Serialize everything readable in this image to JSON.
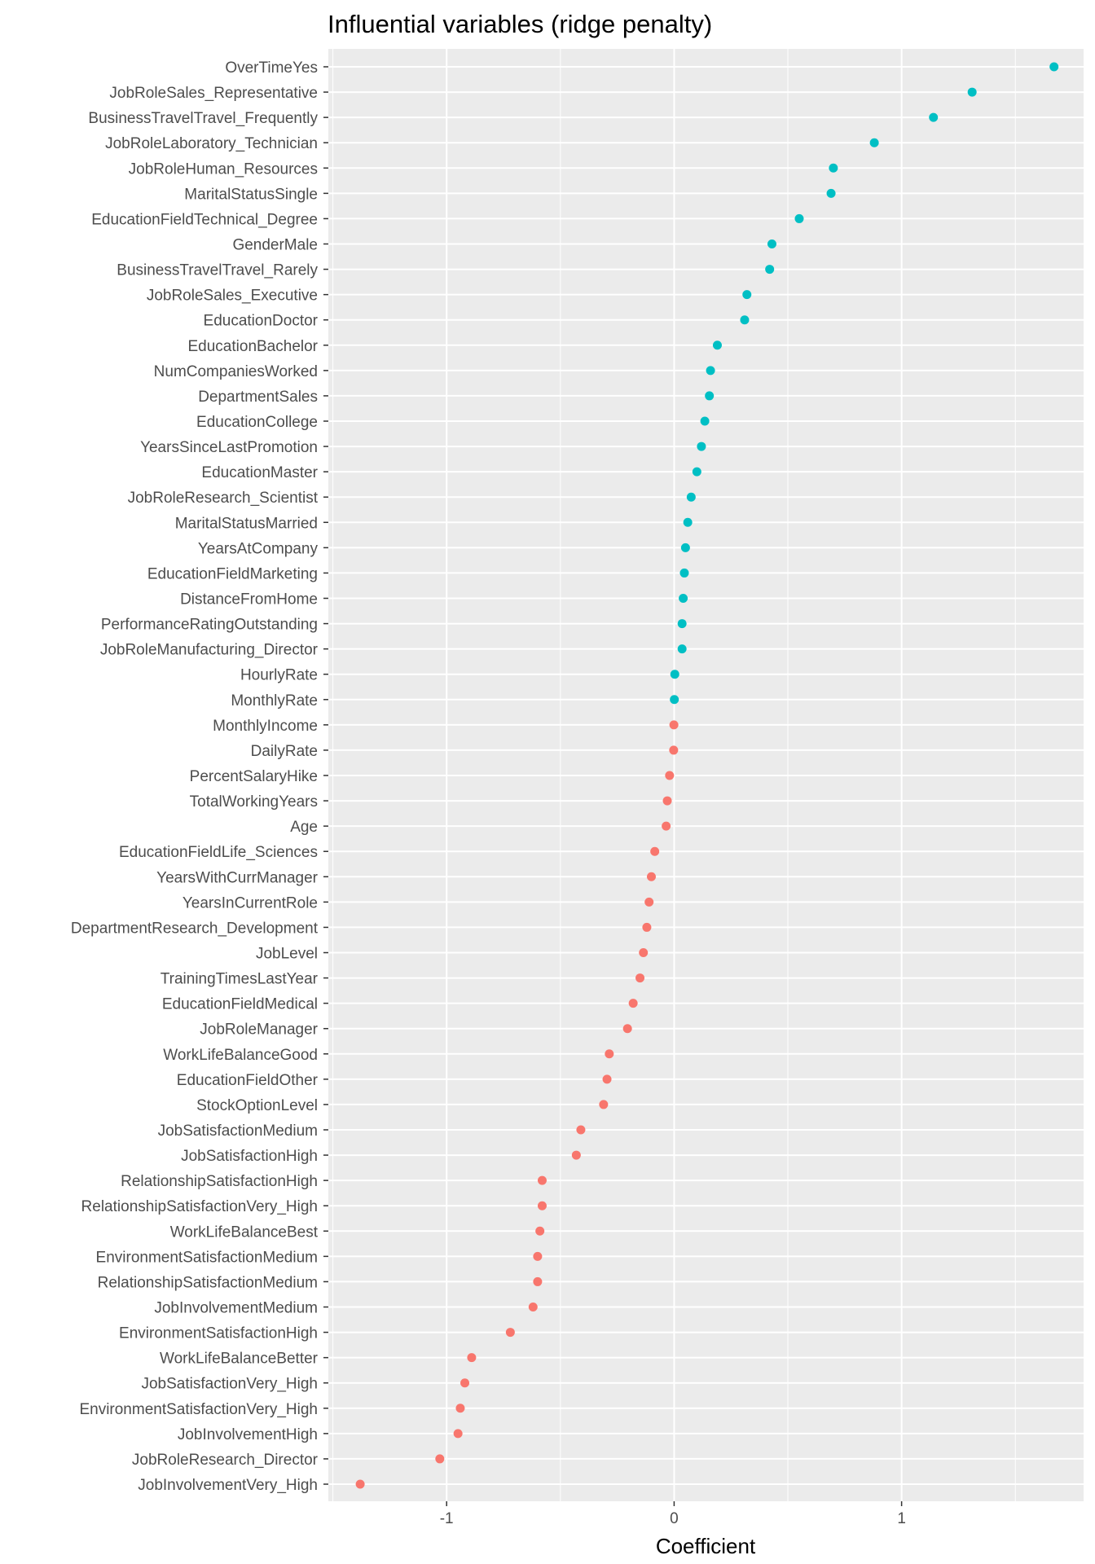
{
  "chart_data": {
    "type": "scatter",
    "title": "Influential variables (ridge penalty)",
    "xlabel": "Coefficient",
    "ylabel": "",
    "xlim": [
      -1.52,
      1.8
    ],
    "xticks": [
      -1,
      0,
      1
    ],
    "xtick_labels": [
      "-1",
      "0",
      "1"
    ],
    "grid": true,
    "legend": "none",
    "colors": {
      "positive": "#00BFC4",
      "negative": "#F8766D",
      "panel": "#EBEBEB",
      "grid": "#FFFFFF"
    },
    "points": [
      {
        "label": "OverTimeYes",
        "value": 1.67,
        "group": "positive"
      },
      {
        "label": "JobRoleSales_Representative",
        "value": 1.31,
        "group": "positive"
      },
      {
        "label": "BusinessTravelTravel_Frequently",
        "value": 1.14,
        "group": "positive"
      },
      {
        "label": "JobRoleLaboratory_Technician",
        "value": 0.88,
        "group": "positive"
      },
      {
        "label": "JobRoleHuman_Resources",
        "value": 0.7,
        "group": "positive"
      },
      {
        "label": "MaritalStatusSingle",
        "value": 0.69,
        "group": "positive"
      },
      {
        "label": "EducationFieldTechnical_Degree",
        "value": 0.55,
        "group": "positive"
      },
      {
        "label": "GenderMale",
        "value": 0.43,
        "group": "positive"
      },
      {
        "label": "BusinessTravelTravel_Rarely",
        "value": 0.42,
        "group": "positive"
      },
      {
        "label": "JobRoleSales_Executive",
        "value": 0.32,
        "group": "positive"
      },
      {
        "label": "EducationDoctor",
        "value": 0.31,
        "group": "positive"
      },
      {
        "label": "EducationBachelor",
        "value": 0.19,
        "group": "positive"
      },
      {
        "label": "NumCompaniesWorked",
        "value": 0.16,
        "group": "positive"
      },
      {
        "label": "DepartmentSales",
        "value": 0.155,
        "group": "positive"
      },
      {
        "label": "EducationCollege",
        "value": 0.135,
        "group": "positive"
      },
      {
        "label": "YearsSinceLastPromotion",
        "value": 0.12,
        "group": "positive"
      },
      {
        "label": "EducationMaster",
        "value": 0.1,
        "group": "positive"
      },
      {
        "label": "JobRoleResearch_Scientist",
        "value": 0.075,
        "group": "positive"
      },
      {
        "label": "MaritalStatusMarried",
        "value": 0.06,
        "group": "positive"
      },
      {
        "label": "YearsAtCompany",
        "value": 0.05,
        "group": "positive"
      },
      {
        "label": "EducationFieldMarketing",
        "value": 0.045,
        "group": "positive"
      },
      {
        "label": "DistanceFromHome",
        "value": 0.04,
        "group": "positive"
      },
      {
        "label": "PerformanceRatingOutstanding",
        "value": 0.035,
        "group": "positive"
      },
      {
        "label": "JobRoleManufacturing_Director",
        "value": 0.035,
        "group": "positive"
      },
      {
        "label": "HourlyRate",
        "value": 0.003,
        "group": "positive"
      },
      {
        "label": "MonthlyRate",
        "value": 0.001,
        "group": "positive"
      },
      {
        "label": "MonthlyIncome",
        "value": -0.001,
        "group": "negative"
      },
      {
        "label": "DailyRate",
        "value": -0.002,
        "group": "negative"
      },
      {
        "label": "PercentSalaryHike",
        "value": -0.02,
        "group": "negative"
      },
      {
        "label": "TotalWorkingYears",
        "value": -0.03,
        "group": "negative"
      },
      {
        "label": "Age",
        "value": -0.035,
        "group": "negative"
      },
      {
        "label": "EducationFieldLife_Sciences",
        "value": -0.085,
        "group": "negative"
      },
      {
        "label": "YearsWithCurrManager",
        "value": -0.1,
        "group": "negative"
      },
      {
        "label": "YearsInCurrentRole",
        "value": -0.11,
        "group": "negative"
      },
      {
        "label": "DepartmentResearch_Development",
        "value": -0.12,
        "group": "negative"
      },
      {
        "label": "JobLevel",
        "value": -0.135,
        "group": "negative"
      },
      {
        "label": "TrainingTimesLastYear",
        "value": -0.15,
        "group": "negative"
      },
      {
        "label": "EducationFieldMedical",
        "value": -0.18,
        "group": "negative"
      },
      {
        "label": "JobRoleManager",
        "value": -0.205,
        "group": "negative"
      },
      {
        "label": "WorkLifeBalanceGood",
        "value": -0.285,
        "group": "negative"
      },
      {
        "label": "EducationFieldOther",
        "value": -0.295,
        "group": "negative"
      },
      {
        "label": "StockOptionLevel",
        "value": -0.31,
        "group": "negative"
      },
      {
        "label": "JobSatisfactionMedium",
        "value": -0.41,
        "group": "negative"
      },
      {
        "label": "JobSatisfactionHigh",
        "value": -0.43,
        "group": "negative"
      },
      {
        "label": "RelationshipSatisfactionHigh",
        "value": -0.58,
        "group": "negative"
      },
      {
        "label": "RelationshipSatisfactionVery_High",
        "value": -0.58,
        "group": "negative"
      },
      {
        "label": "WorkLifeBalanceBest",
        "value": -0.59,
        "group": "negative"
      },
      {
        "label": "EnvironmentSatisfactionMedium",
        "value": -0.6,
        "group": "negative"
      },
      {
        "label": "RelationshipSatisfactionMedium",
        "value": -0.6,
        "group": "negative"
      },
      {
        "label": "JobInvolvementMedium",
        "value": -0.62,
        "group": "negative"
      },
      {
        "label": "EnvironmentSatisfactionHigh",
        "value": -0.72,
        "group": "negative"
      },
      {
        "label": "WorkLifeBalanceBetter",
        "value": -0.89,
        "group": "negative"
      },
      {
        "label": "JobSatisfactionVery_High",
        "value": -0.92,
        "group": "negative"
      },
      {
        "label": "EnvironmentSatisfactionVery_High",
        "value": -0.94,
        "group": "negative"
      },
      {
        "label": "JobInvolvementHigh",
        "value": -0.95,
        "group": "negative"
      },
      {
        "label": "JobRoleResearch_Director",
        "value": -1.03,
        "group": "negative"
      },
      {
        "label": "JobInvolvementVery_High",
        "value": -1.38,
        "group": "negative"
      }
    ]
  }
}
